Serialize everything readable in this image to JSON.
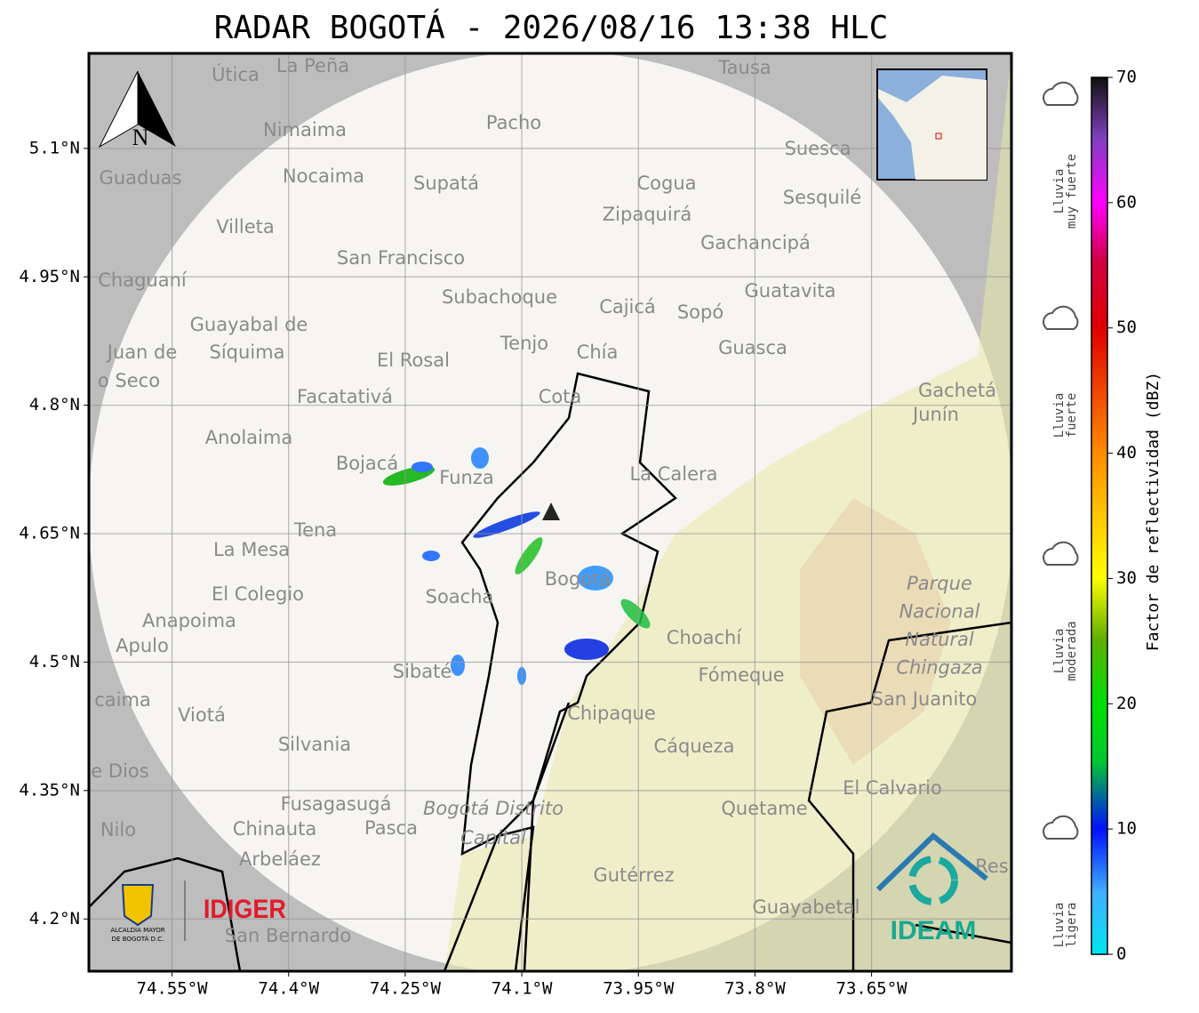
{
  "title": "RADAR BOGOTÁ - 2026/08/16 13:38 HLC",
  "map": {
    "lonlim": [
      -74.657,
      -73.47
    ],
    "latlim": [
      4.139,
      5.211
    ],
    "lon_ticks": [
      {
        "value": -74.55,
        "label": "74.55°W"
      },
      {
        "value": -74.4,
        "label": "74.4°W"
      },
      {
        "value": -74.25,
        "label": "74.25°W"
      },
      {
        "value": -74.1,
        "label": "74.1°W"
      },
      {
        "value": -73.95,
        "label": "73.95°W"
      },
      {
        "value": -73.8,
        "label": "73.8°W"
      },
      {
        "value": -73.65,
        "label": "73.65°W"
      }
    ],
    "lat_ticks": [
      {
        "value": 5.1,
        "label": "5.1°N"
      },
      {
        "value": 4.95,
        "label": "4.95°N"
      },
      {
        "value": 4.8,
        "label": "4.8°N"
      },
      {
        "value": 4.65,
        "label": "4.65°N"
      },
      {
        "value": 4.5,
        "label": "4.5°N"
      },
      {
        "value": 4.35,
        "label": "4.35°N"
      },
      {
        "value": 4.2,
        "label": "4.2°N"
      }
    ],
    "places": [
      "La Peña",
      "Útica",
      "Tausa",
      "Pacho",
      "Nimaima",
      "Suesca",
      "Guaduas",
      "Nocaima",
      "Supatá",
      "Cogua",
      "Sesquilé",
      "Zipaquirá",
      "Villeta",
      "Gachancipá",
      "San Francisco",
      "Chaguaní",
      "Guatavita",
      "Subachoque",
      "Cajicá",
      "Sopó",
      "Guayabal de",
      "Síquima",
      "Tenjo",
      "Juan de",
      "Guasca",
      "Chía",
      "El Rosal",
      "o Seco",
      "Cota",
      "Facatativá",
      "Gachetá",
      "Junín",
      "Anolaima",
      "Bojacá",
      "Funza",
      "La Calera",
      "Tena",
      "La Mesa",
      "El Colegio",
      "Soacha",
      "Bogotá",
      "Anapoima",
      "Apulo",
      "Choachí",
      "Fómeque",
      "Sibaté",
      "San Juanito",
      "caima",
      "Viotá",
      "Chipaque",
      "Silvania",
      "Cáqueza",
      "e Dios",
      "El Calvario",
      "Fusagasugá",
      "Quetame",
      "Nilo",
      "Chinauta",
      "Pasca",
      "Arbeláez",
      "Gutérrez",
      "Guayabetal",
      "San Bernardo",
      "Res"
    ],
    "park_labels": [
      "Parque",
      "Nacional",
      "Natural",
      "Chingaza"
    ],
    "district_labels": [
      "Bogotá Distrito",
      "Capital"
    ],
    "north": "N"
  },
  "colorbar": {
    "label": "Factor de reflectividad (dBZ)",
    "lim": [
      0,
      70
    ],
    "ticks": [
      0,
      10,
      20,
      30,
      40,
      50,
      60,
      70
    ]
  },
  "rain_levels": [
    [
      "Lluvia",
      "muy fuerte"
    ],
    [
      "Lluvia",
      "fuerte"
    ],
    [
      "Lluvia",
      "moderada"
    ],
    [
      "Lluvia",
      "ligera"
    ]
  ],
  "logos": {
    "alcaldia": [
      "ALCALDÍA MAYOR",
      "DE BOGOTÁ D.C."
    ],
    "idiger": "IDIGER",
    "ideam": "IDEAM"
  }
}
